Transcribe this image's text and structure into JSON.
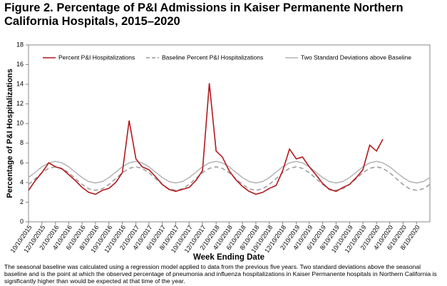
{
  "chart_data": {
    "type": "line",
    "title": "Figure 2. Percentage of P&I Admissions in Kaiser Permanente Northern California Hospitals, 2015–2020",
    "x_label": "Week Ending Date",
    "y_label": "Percentage of P&I Hospitalizations",
    "footnote": "The seasonal baseline was calculated using a regression model applied to data from the previous five years.  Two standard deviations above the seasonal baseline and is the point at which the observed percentage of pneumonia and influenza hospitalizations in Kaiser Permanente hospitals in Northern California is significantly higher than would be expected at that time of the year.",
    "x": [
      "10/10/2015",
      "11/10/2015",
      "12/10/2015",
      "1/10/2016",
      "2/10/2016",
      "3/10/2016",
      "4/10/2016",
      "5/10/2016",
      "6/10/2016",
      "7/10/2016",
      "8/10/2016",
      "9/10/2016",
      "10/10/2016",
      "11/10/2016",
      "12/10/2016",
      "1/10/2017",
      "2/10/2017",
      "3/10/2017",
      "4/10/2017",
      "5/10/2017",
      "6/10/2017",
      "7/10/2017",
      "8/10/2017",
      "9/10/2017",
      "10/10/2017",
      "11/10/2017",
      "12/10/2017",
      "1/10/2018",
      "2/10/2018",
      "3/10/2018",
      "4/10/2018",
      "5/10/2018",
      "6/10/2018",
      "7/10/2018",
      "8/10/2018",
      "9/10/2018",
      "10/10/2018",
      "11/10/2018",
      "12/10/2018",
      "1/10/2019",
      "2/10/2019",
      "3/10/2019",
      "4/10/2019",
      "5/10/2019",
      "6/10/2019",
      "7/10/2019",
      "8/10/2019",
      "9/10/2019",
      "10/10/2019",
      "11/10/2019",
      "12/10/2019",
      "1/10/2020",
      "2/10/2020",
      "3/10/2020",
      "4/10/2020",
      "5/10/2020",
      "6/10/2020",
      "7/10/2020",
      "8/10/2020",
      "9/10/2020",
      "10/10/2020"
    ],
    "series": [
      {
        "name": "Percent P&I Hospitalizations",
        "color": "#b0191e",
        "dashed": false,
        "values": [
          3.2,
          4.2,
          5.0,
          6.0,
          5.6,
          5.4,
          4.8,
          4.2,
          3.5,
          3.0,
          2.8,
          3.2,
          3.4,
          4.0,
          5.0,
          10.3,
          6.4,
          5.6,
          5.3,
          4.6,
          3.8,
          3.3,
          3.1,
          3.3,
          3.5,
          4.2,
          5.2,
          14.1,
          7.2,
          6.6,
          5.2,
          4.3,
          3.6,
          3.1,
          2.8,
          3.0,
          3.4,
          3.7,
          5.2,
          7.4,
          6.4,
          6.6,
          5.6,
          4.8,
          3.9,
          3.3,
          3.1,
          3.5,
          3.8,
          4.5,
          5.3,
          7.8,
          7.2,
          8.4,
          null,
          null,
          null,
          null,
          null,
          null,
          null
        ]
      },
      {
        "name": "Baseline Percent P&I Hospitalizations",
        "color": "#999999",
        "dashed": true,
        "values": [
          3.8,
          4.4,
          5.0,
          5.44,
          5.6,
          5.44,
          5.0,
          4.4,
          3.8,
          3.36,
          3.2,
          3.36,
          3.8,
          4.4,
          5.0,
          5.44,
          5.6,
          5.44,
          5.0,
          4.4,
          3.8,
          3.36,
          3.2,
          3.36,
          3.8,
          4.4,
          5.0,
          5.44,
          5.6,
          5.44,
          5.0,
          4.4,
          3.8,
          3.36,
          3.2,
          3.36,
          3.8,
          4.4,
          5.0,
          5.44,
          5.6,
          5.44,
          5.0,
          4.4,
          3.8,
          3.36,
          3.2,
          3.36,
          3.8,
          4.4,
          5.0,
          5.44,
          5.6,
          5.44,
          5.0,
          4.4,
          3.8,
          3.36,
          3.2,
          3.36,
          3.8
        ]
      },
      {
        "name": "Two Standard Deviations above Baseline",
        "color": "#b4b4b4",
        "dashed": false,
        "values": [
          4.5,
          5.05,
          5.6,
          6.0,
          6.15,
          6.0,
          5.6,
          5.05,
          4.5,
          4.1,
          3.95,
          4.1,
          4.5,
          5.05,
          5.6,
          6.0,
          6.15,
          6.0,
          5.6,
          5.05,
          4.5,
          4.1,
          3.95,
          4.1,
          4.5,
          5.05,
          5.6,
          6.0,
          6.15,
          6.0,
          5.6,
          5.05,
          4.5,
          4.1,
          3.95,
          4.1,
          4.5,
          5.05,
          5.6,
          6.0,
          6.15,
          6.0,
          5.6,
          5.05,
          4.5,
          4.1,
          3.95,
          4.1,
          4.5,
          5.05,
          5.6,
          6.0,
          6.15,
          6.0,
          5.6,
          5.05,
          4.5,
          4.1,
          3.95,
          4.1,
          4.5
        ]
      }
    ],
    "xlim": [
      "10/10/2015",
      "10/10/2020"
    ],
    "xticks": [
      "10/10/2015",
      "12/10/2015",
      "2/10/2016",
      "4/10/2016",
      "6/10/2016",
      "8/10/2016",
      "10/10/2016",
      "12/10/2016",
      "2/10/2017",
      "4/10/2017",
      "6/10/2017",
      "8/10/2017",
      "10/10/2017",
      "12/10/2017",
      "2/10/2018",
      "4/10/2018",
      "6/10/2018",
      "8/10/2018",
      "10/10/2018",
      "12/10/2018",
      "2/10/2019",
      "4/10/2019",
      "6/10/2019",
      "8/10/2019",
      "10/10/2019",
      "12/10/2019",
      "2/10/2020",
      "4/10/2020",
      "6/10/2020",
      "8/10/2020"
    ],
    "ylim": [
      0,
      18
    ],
    "yticks": [
      0,
      2,
      4,
      6,
      8,
      10,
      12,
      14,
      16,
      18
    ],
    "grid": false,
    "legend": "top"
  }
}
